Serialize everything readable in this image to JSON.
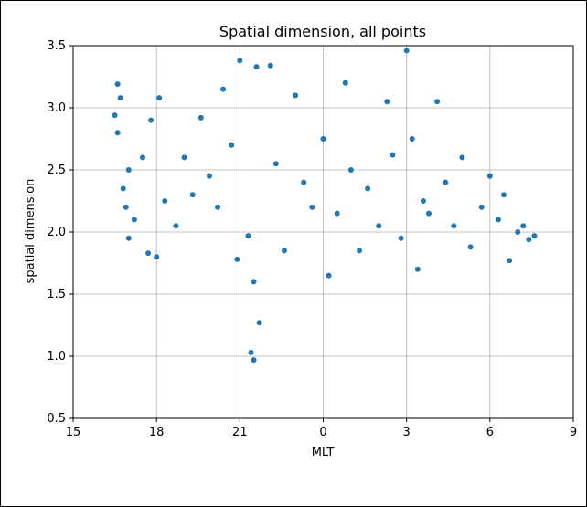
{
  "chart_data": {
    "type": "scatter",
    "title": "Spatial dimension, all points",
    "xlabel": "MLT",
    "ylabel": "spatial dimension",
    "xlim": [
      15,
      33
    ],
    "ylim": [
      0.5,
      3.5
    ],
    "xtick_values": [
      15,
      18,
      21,
      24,
      27,
      30,
      33
    ],
    "xtick_labels": [
      "15",
      "18",
      "21",
      "0",
      "3",
      "6",
      "9"
    ],
    "ytick_values": [
      0.5,
      1.0,
      1.5,
      2.0,
      2.5,
      3.0,
      3.5
    ],
    "ytick_labels": [
      "0.5",
      "1.0",
      "1.5",
      "2.0",
      "2.5",
      "3.0",
      "3.5"
    ],
    "grid": true,
    "series": [
      {
        "color": "#1f77b4",
        "points": [
          [
            16.5,
            2.94
          ],
          [
            16.6,
            3.19
          ],
          [
            16.7,
            3.08
          ],
          [
            16.6,
            2.8
          ],
          [
            17.0,
            2.5
          ],
          [
            16.8,
            2.35
          ],
          [
            16.9,
            2.2
          ],
          [
            17.2,
            2.1
          ],
          [
            17.0,
            1.95
          ],
          [
            17.5,
            2.6
          ],
          [
            17.8,
            2.9
          ],
          [
            17.7,
            1.83
          ],
          [
            18.0,
            1.8
          ],
          [
            18.1,
            3.08
          ],
          [
            18.3,
            2.25
          ],
          [
            18.7,
            2.05
          ],
          [
            19.0,
            2.6
          ],
          [
            19.3,
            2.3
          ],
          [
            19.6,
            2.92
          ],
          [
            19.9,
            2.45
          ],
          [
            20.2,
            2.2
          ],
          [
            20.4,
            3.15
          ],
          [
            20.7,
            2.7
          ],
          [
            20.9,
            1.78
          ],
          [
            21.0,
            3.38
          ],
          [
            21.3,
            1.97
          ],
          [
            21.5,
            1.6
          ],
          [
            21.7,
            1.27
          ],
          [
            21.4,
            1.03
          ],
          [
            21.5,
            0.97
          ],
          [
            21.6,
            3.33
          ],
          [
            22.1,
            3.34
          ],
          [
            22.3,
            2.55
          ],
          [
            22.6,
            1.85
          ],
          [
            23.0,
            3.1
          ],
          [
            23.3,
            2.4
          ],
          [
            23.6,
            2.2
          ],
          [
            24.0,
            2.75
          ],
          [
            24.2,
            1.65
          ],
          [
            24.5,
            2.15
          ],
          [
            24.8,
            3.2
          ],
          [
            25.0,
            2.5
          ],
          [
            25.3,
            1.85
          ],
          [
            25.6,
            2.35
          ],
          [
            26.0,
            2.05
          ],
          [
            26.3,
            3.05
          ],
          [
            26.5,
            2.62
          ],
          [
            26.8,
            1.95
          ],
          [
            27.0,
            3.46
          ],
          [
            27.2,
            2.75
          ],
          [
            27.4,
            1.7
          ],
          [
            27.6,
            2.25
          ],
          [
            27.8,
            2.15
          ],
          [
            28.1,
            3.05
          ],
          [
            28.4,
            2.4
          ],
          [
            28.7,
            2.05
          ],
          [
            29.0,
            2.6
          ],
          [
            29.3,
            1.88
          ],
          [
            29.7,
            2.2
          ],
          [
            30.0,
            2.45
          ],
          [
            30.3,
            2.1
          ],
          [
            30.5,
            2.3
          ],
          [
            30.7,
            1.77
          ],
          [
            31.0,
            2.0
          ],
          [
            31.2,
            2.05
          ],
          [
            31.4,
            1.94
          ],
          [
            31.6,
            1.97
          ]
        ]
      }
    ]
  }
}
